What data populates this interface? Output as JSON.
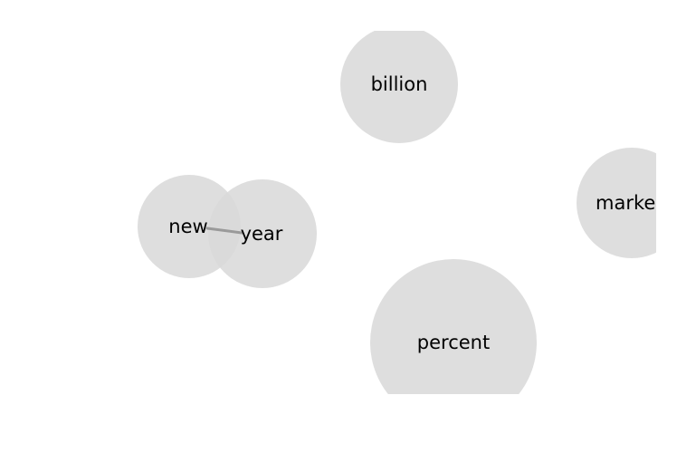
{
  "nodes": [
    {
      "id": "billion",
      "label": "billion"
    },
    {
      "id": "market",
      "label": "marke"
    },
    {
      "id": "new",
      "label": "new"
    },
    {
      "id": "year",
      "label": "year"
    },
    {
      "id": "percent",
      "label": "percent"
    }
  ],
  "edges": [
    {
      "source": "new",
      "target": "year"
    }
  ],
  "colors": {
    "bubble": "#dddddd",
    "edge": "#9a9a9a",
    "text": "#000000",
    "background": "#ffffff"
  }
}
